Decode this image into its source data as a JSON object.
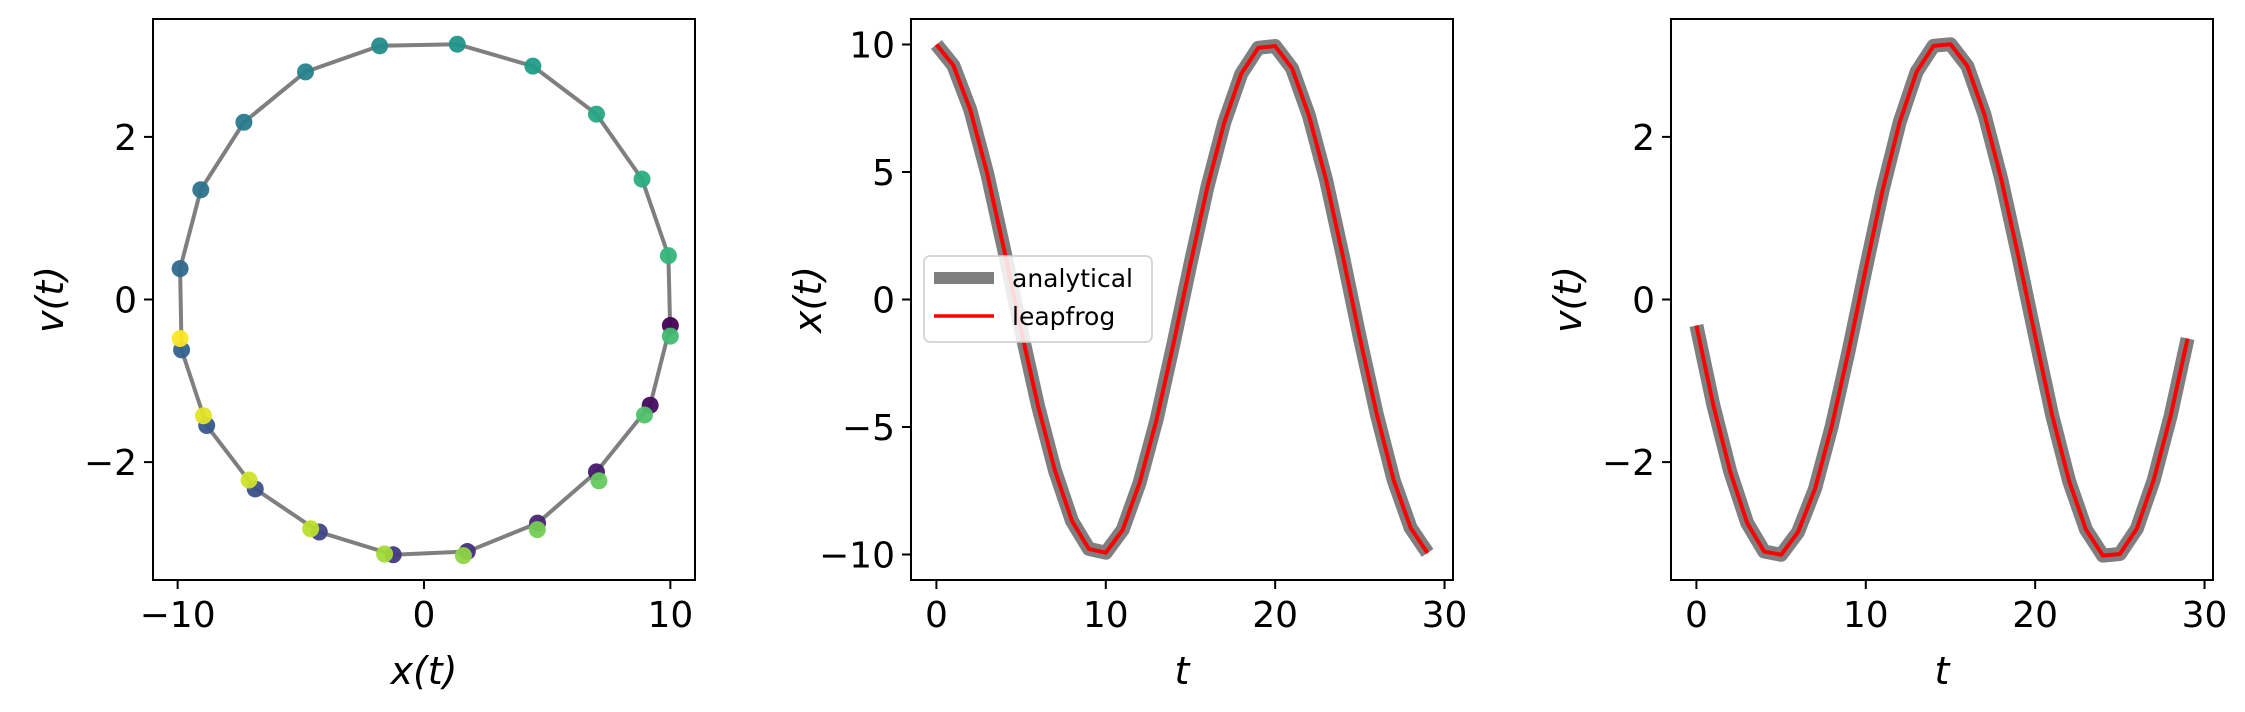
{
  "chart_data": [
    {
      "type": "scatter",
      "xlabel": "x(t)",
      "ylabel": "v(t)",
      "xlim": [
        -11.0,
        11.0
      ],
      "ylim": [
        -3.45,
        3.45
      ],
      "xticks": [
        -10,
        0,
        10
      ],
      "yticks": [
        -2,
        0,
        2
      ],
      "xtick_labels": [
        "−10",
        "0",
        "10"
      ],
      "ytick_labels": [
        "−2",
        "0",
        "2"
      ],
      "colormap": "viridis",
      "path_color": "#7f7f7f",
      "orbit_x": [
        10.0,
        9.18,
        7.0,
        4.61,
        1.76,
        -1.25,
        -4.25,
        -6.85,
        -8.82,
        -9.84,
        -9.9,
        -9.06,
        -7.31,
        -4.81,
        -1.8,
        1.35,
        4.42,
        7.0,
        8.85,
        9.92,
        10.0
      ],
      "orbit_v": [
        -0.32,
        -1.3,
        -2.12,
        -2.75,
        -3.1,
        -3.14,
        -2.86,
        -2.33,
        -1.55,
        -0.62,
        0.38,
        1.35,
        2.18,
        2.8,
        3.12,
        3.14,
        2.87,
        2.28,
        1.48,
        0.54,
        -0.45
      ],
      "points": [
        {
          "x": 10.0,
          "v": -0.32,
          "c": 0.0
        },
        {
          "x": 9.18,
          "v": -1.3,
          "c": 0.03
        },
        {
          "x": 7.0,
          "v": -2.12,
          "c": 0.07
        },
        {
          "x": 4.61,
          "v": -2.75,
          "c": 0.1
        },
        {
          "x": 1.76,
          "v": -3.1,
          "c": 0.14
        },
        {
          "x": -1.25,
          "v": -3.14,
          "c": 0.17
        },
        {
          "x": -4.25,
          "v": -2.86,
          "c": 0.21
        },
        {
          "x": -6.85,
          "v": -2.33,
          "c": 0.24
        },
        {
          "x": -8.82,
          "v": -1.55,
          "c": 0.28
        },
        {
          "x": -9.84,
          "v": -0.62,
          "c": 0.31
        },
        {
          "x": -9.9,
          "v": 0.38,
          "c": 0.34
        },
        {
          "x": -9.06,
          "v": 1.35,
          "c": 0.38
        },
        {
          "x": -7.31,
          "v": 2.18,
          "c": 0.41
        },
        {
          "x": -4.81,
          "v": 2.8,
          "c": 0.45
        },
        {
          "x": -1.8,
          "v": 3.12,
          "c": 0.48
        },
        {
          "x": 1.35,
          "v": 3.14,
          "c": 0.52
        },
        {
          "x": 4.42,
          "v": 2.87,
          "c": 0.55
        },
        {
          "x": 7.0,
          "v": 2.28,
          "c": 0.59
        },
        {
          "x": 8.85,
          "v": 1.48,
          "c": 0.62
        },
        {
          "x": 9.92,
          "v": 0.54,
          "c": 0.66
        },
        {
          "x": 10.0,
          "v": -0.45,
          "c": 0.69
        },
        {
          "x": 8.95,
          "v": -1.42,
          "c": 0.72
        },
        {
          "x": 7.1,
          "v": -2.23,
          "c": 0.76
        },
        {
          "x": 4.6,
          "v": -2.83,
          "c": 0.79
        },
        {
          "x": 1.6,
          "v": -3.15,
          "c": 0.83
        },
        {
          "x": -1.6,
          "v": -3.13,
          "c": 0.86
        },
        {
          "x": -4.6,
          "v": -2.82,
          "c": 0.9
        },
        {
          "x": -7.1,
          "v": -2.22,
          "c": 0.93
        },
        {
          "x": -8.95,
          "v": -1.43,
          "c": 0.96
        },
        {
          "x": -9.9,
          "v": -0.48,
          "c": 1.0
        }
      ]
    },
    {
      "type": "line",
      "xlabel": "t",
      "ylabel": "x(t)",
      "xlim": [
        -1.5,
        30.5
      ],
      "ylim": [
        -11.0,
        11.0
      ],
      "xticks": [
        0,
        10,
        20,
        30
      ],
      "yticks": [
        -10,
        -5,
        0,
        5,
        10
      ],
      "xtick_labels": [
        "0",
        "10",
        "20",
        "30"
      ],
      "ytick_labels": [
        "−10",
        "−5",
        "0",
        "5",
        "10"
      ],
      "legend_position": "center-left",
      "x": [
        0,
        1,
        2,
        3,
        4,
        5,
        6,
        7,
        8,
        9,
        10,
        11,
        12,
        13,
        14,
        15,
        16,
        17,
        18,
        19,
        20,
        21,
        22,
        23,
        24,
        25,
        26,
        27,
        28,
        29
      ],
      "series": [
        {
          "name": "analytical",
          "color": "#7f7f7f",
          "values": [
            10.0,
            9.18,
            7.44,
            4.94,
            1.94,
            -1.2,
            -4.17,
            -6.71,
            -8.68,
            -9.78,
            -9.93,
            -9.03,
            -7.18,
            -4.71,
            -1.73,
            1.4,
            4.41,
            6.95,
            8.85,
            9.87,
            9.94,
            9.06,
            7.2,
            4.71,
            1.69,
            -1.5,
            -4.5,
            -7.09,
            -8.96,
            -9.94
          ]
        },
        {
          "name": "leapfrog",
          "color": "#ff0000",
          "values": [
            10.0,
            9.18,
            7.44,
            4.94,
            1.94,
            -1.2,
            -4.17,
            -6.71,
            -8.68,
            -9.78,
            -9.93,
            -9.03,
            -7.18,
            -4.71,
            -1.73,
            1.4,
            4.41,
            6.95,
            8.85,
            9.87,
            9.94,
            9.06,
            7.2,
            4.71,
            1.69,
            -1.5,
            -4.5,
            -7.09,
            -8.96,
            -9.94
          ]
        }
      ]
    },
    {
      "type": "line",
      "xlabel": "t",
      "ylabel": "v(t)",
      "xlim": [
        -1.5,
        30.5
      ],
      "ylim": [
        -3.45,
        3.45
      ],
      "xticks": [
        0,
        10,
        20,
        30
      ],
      "yticks": [
        -2,
        0,
        2
      ],
      "xtick_labels": [
        "0",
        "10",
        "20",
        "30"
      ],
      "ytick_labels": [
        "−2",
        "0",
        "2"
      ],
      "x": [
        0,
        1,
        2,
        3,
        4,
        5,
        6,
        7,
        8,
        9,
        10,
        11,
        12,
        13,
        14,
        15,
        16,
        17,
        18,
        19,
        20,
        21,
        22,
        23,
        24,
        25,
        26,
        27,
        28,
        29
      ],
      "series": [
        {
          "name": "analytical",
          "color": "#7f7f7f",
          "values": [
            -0.32,
            -1.3,
            -2.12,
            -2.75,
            -3.1,
            -3.14,
            -2.86,
            -2.33,
            -1.55,
            -0.62,
            0.38,
            1.35,
            2.18,
            2.8,
            3.12,
            3.14,
            2.87,
            2.28,
            1.48,
            0.54,
            -0.45,
            -1.42,
            -2.23,
            -2.83,
            -3.15,
            -3.13,
            -2.82,
            -2.22,
            -1.43,
            -0.48
          ]
        },
        {
          "name": "leapfrog",
          "color": "#ff0000",
          "values": [
            -0.32,
            -1.3,
            -2.12,
            -2.75,
            -3.1,
            -3.14,
            -2.86,
            -2.33,
            -1.55,
            -0.62,
            0.38,
            1.35,
            2.18,
            2.8,
            3.12,
            3.14,
            2.87,
            2.28,
            1.48,
            0.54,
            -0.45,
            -1.42,
            -2.23,
            -2.83,
            -3.15,
            -3.13,
            -2.82,
            -2.22,
            -1.43,
            -0.48
          ]
        }
      ]
    }
  ]
}
